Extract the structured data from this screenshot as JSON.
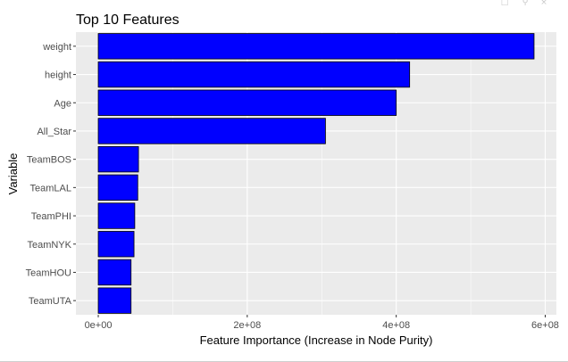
{
  "viewer": {
    "icons": [
      "export-icon",
      "zoom-icon",
      "close-icon"
    ]
  },
  "chart_data": {
    "type": "bar",
    "orientation": "horizontal",
    "title": "Top 10 Features",
    "xlabel": "Feature Importance (Increase in Node Purity)",
    "ylabel": "Variable",
    "categories": [
      "weight",
      "height",
      "Age",
      "All_Star",
      "TeamBOS",
      "TeamLAL",
      "TeamPHI",
      "TeamNYK",
      "TeamHOU",
      "TeamUTA"
    ],
    "values": [
      585000000,
      418000000,
      400000000,
      305000000,
      54000000,
      53000000,
      49000000,
      48000000,
      44000000,
      44000000
    ],
    "xlim": [
      -30000000,
      615000000
    ],
    "xticks": [
      0,
      200000000,
      400000000,
      600000000
    ],
    "xtick_labels": [
      "0e+00",
      "2e+08",
      "4e+08",
      "6e+08"
    ],
    "bar_fill": "#0000ff",
    "bar_outline": "#000000",
    "panel_background": "#ebebeb",
    "grid": true,
    "legend": "none"
  }
}
